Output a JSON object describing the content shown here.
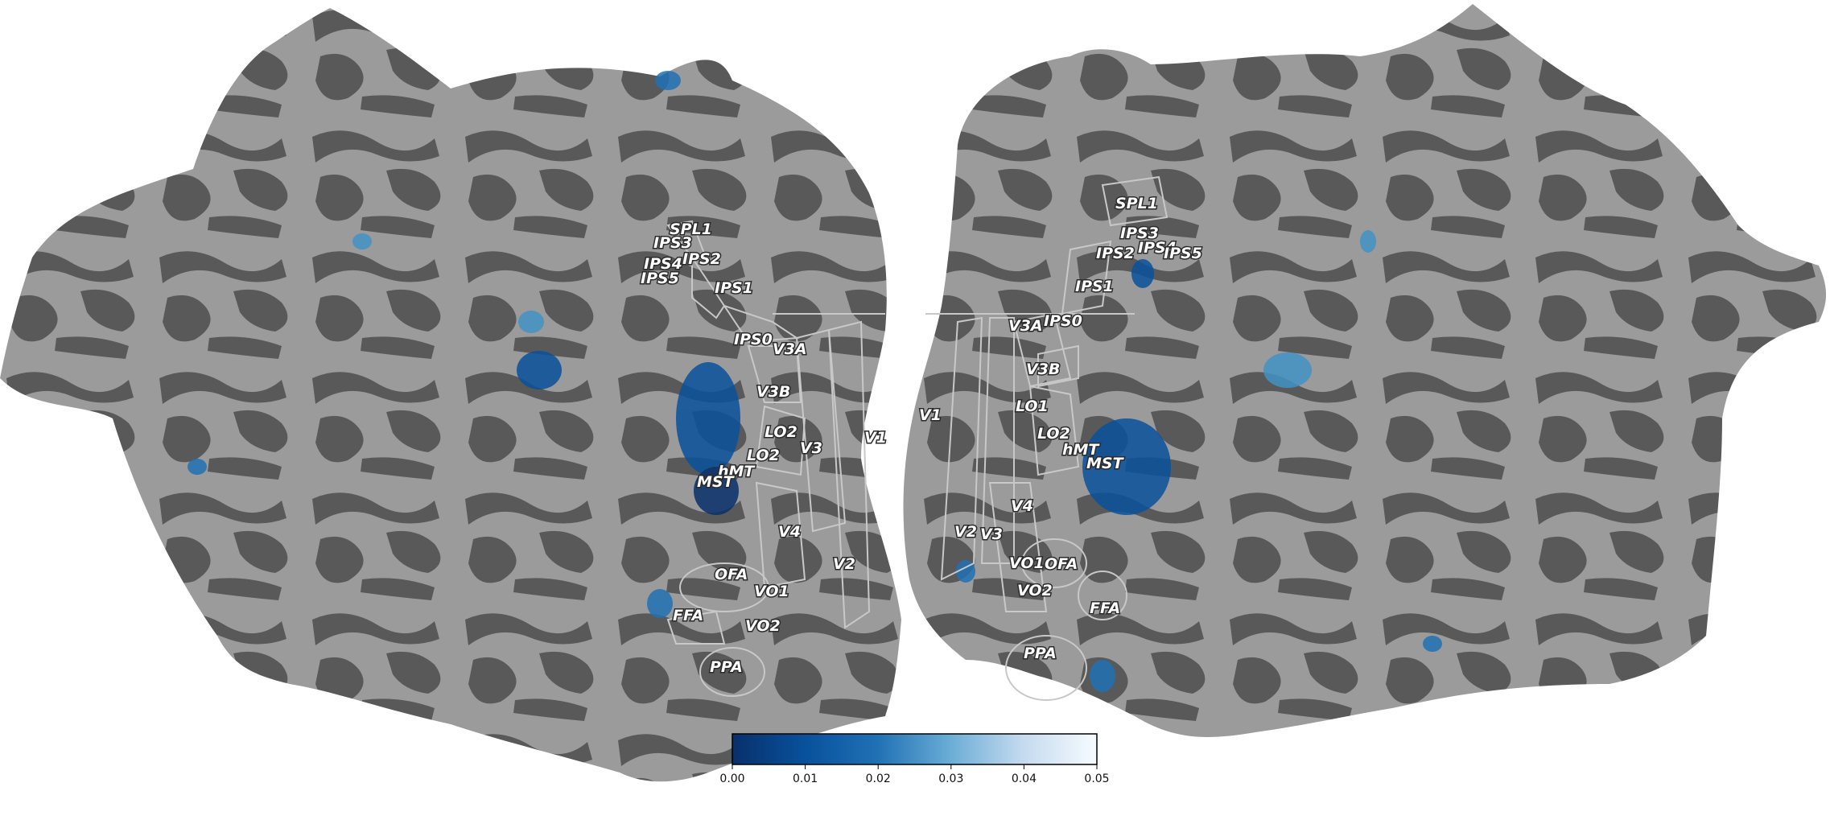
{
  "colors": {
    "gyri": "#9b9b9b",
    "sulci": "#595959",
    "roi_outline": "#c8c8c8",
    "colormap": [
      "#08306b",
      "#08519c",
      "#2171b5",
      "#4292c6",
      "#6baed6",
      "#9ecae1",
      "#c6dbef",
      "#f7fbff"
    ]
  },
  "colorbar": {
    "min": 0.0,
    "max": 0.05,
    "ticks": [
      "0.00",
      "0.01",
      "0.02",
      "0.03",
      "0.04",
      "0.05"
    ]
  },
  "left_hemisphere": {
    "rois": [
      "SPL1",
      "IPS3",
      "IPS2",
      "IPS4",
      "IPS5",
      "IPS1",
      "IPS0",
      "V3A",
      "V3B",
      "LO2",
      "LO2",
      "V3",
      "V1",
      "hMT",
      "MST",
      "V4",
      "V2",
      "OFA",
      "VO1",
      "FFA",
      "VO2",
      "PPA"
    ]
  },
  "right_hemisphere": {
    "rois": [
      "SPL1",
      "IPS3",
      "IPS2",
      "IPS4",
      "IPS5",
      "IPS1",
      "V3A",
      "IPS0",
      "V3B",
      "V1",
      "LO1",
      "LO2",
      "hMT",
      "MST",
      "V4",
      "V2",
      "V3",
      "VO1",
      "OFA",
      "VO2",
      "FFA",
      "PPA"
    ]
  }
}
